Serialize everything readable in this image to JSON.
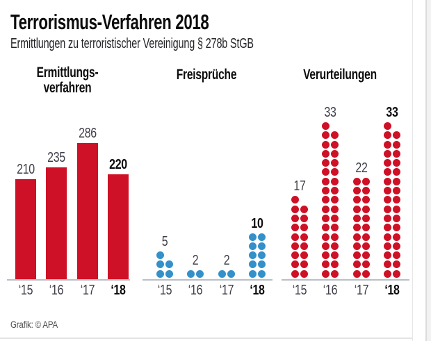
{
  "title": "Terrorismus-Verfahren 2018",
  "subtitle": "Ermittlungen zu terroristischer Vereinigung § 278b StGB",
  "footer": "Grafik: © APA",
  "colors": {
    "bar_red": "#ce1126",
    "dot_blue": "#3390c9",
    "dot_red": "#ce1126",
    "highlight_text": "#0c0c0e",
    "label_gray": "#3e3e48",
    "baseline_gray": "#b9bfc5"
  },
  "chart_data": [
    {
      "type": "bar",
      "variant": "rect-bars",
      "title": "Ermittlungs-\nverfahren",
      "categories": [
        "‘15",
        "‘16",
        "‘17",
        "‘18"
      ],
      "values": [
        210,
        235,
        286,
        220
      ],
      "color": "#ce1126",
      "highlight_index": 3,
      "ylim": [
        0,
        300
      ],
      "grid": false,
      "legend": "none",
      "data_labels": true
    },
    {
      "type": "bar",
      "variant": "dot-pictogram",
      "title": "Freisprüche",
      "categories": [
        "‘15",
        "‘16",
        "‘17",
        "‘18"
      ],
      "values": [
        5,
        2,
        2,
        10
      ],
      "color": "#3390c9",
      "highlight_index": 3,
      "unit_per_dot": 1,
      "dots_per_row": 2,
      "grid": false,
      "legend": "none",
      "data_labels": true
    },
    {
      "type": "bar",
      "variant": "dot-pictogram",
      "title": "Verurteilungen",
      "categories": [
        "‘15",
        "‘16",
        "‘17",
        "‘18"
      ],
      "values": [
        17,
        33,
        22,
        33
      ],
      "color": "#ce1126",
      "highlight_index": 3,
      "unit_per_dot": 1,
      "dots_per_row": 2,
      "grid": false,
      "legend": "none",
      "data_labels": true
    }
  ]
}
